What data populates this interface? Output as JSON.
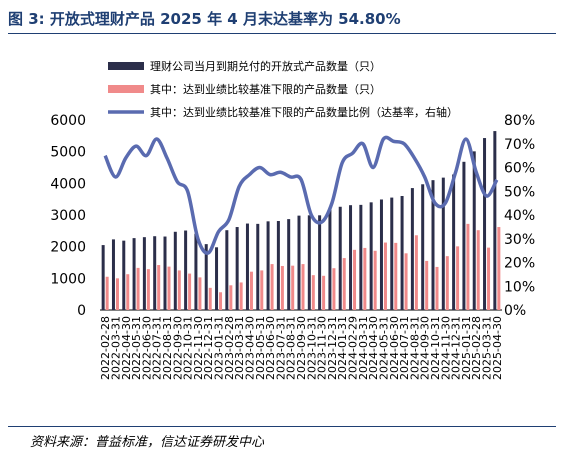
{
  "title": "图 3:  开放式理财产品 2025 年 4 月末达基率为 54.80%",
  "source": "资料来源：普益标准，信达证券研发中心",
  "colors": {
    "bar_total": "#2b2e4a",
    "bar_met": "#f08a8a",
    "line": "#5a6bb0"
  },
  "chart_data": {
    "type": "bar",
    "categories": [
      "2022-02-28",
      "2022-03-31",
      "2022-04-30",
      "2022-05-31",
      "2022-06-30",
      "2022-07-31",
      "2022-08-31",
      "2022-09-30",
      "2022-10-31",
      "2022-11-30",
      "2022-12-31",
      "2023-01-31",
      "2023-02-28",
      "2023-03-31",
      "2023-04-30",
      "2023-05-31",
      "2023-06-30",
      "2023-07-31",
      "2023-08-31",
      "2023-09-30",
      "2023-10-31",
      "2023-11-30",
      "2023-12-31",
      "2024-01-31",
      "2024-02-29",
      "2024-03-31",
      "2024-04-30",
      "2024-05-31",
      "2024-06-30",
      "2024-07-31",
      "2024-08-31",
      "2024-09-30",
      "2024-10-31",
      "2024-11-30",
      "2024-12-31",
      "2025-01-31",
      "2025-02-28",
      "2025-03-31",
      "2025-04-30"
    ],
    "x_tick_labels": [
      "2022-02-28",
      "2022-03-31",
      "2022-04-30",
      "2022-05-31",
      "2022-06-30",
      "2022-07-31",
      "2022-08-31",
      "2022-09-30",
      "2022-10-31",
      "2022-11-30",
      "2022-12-31",
      "2023-01-31",
      "2023-02-28",
      "2023-03-31",
      "2023-04-30",
      "2023-05-31",
      "2023-06-30",
      "2023-07-31",
      "2023-08-31",
      "2023-09-30",
      "2023-10-31",
      "2023-11-30",
      "2023-12-31",
      "2024-01-31",
      "2024-02-29",
      "2024-03-31",
      "2024-04-30",
      "2024-05-31",
      "2024-06-30",
      "2024-07-31",
      "2024-08-31",
      "2024-09-30",
      "2024-10-31",
      "2024-11-30",
      "2024-12-31",
      "2025-01-31",
      "2025-02-28",
      "2025-03-31",
      "2025-04-30"
    ],
    "series": [
      {
        "name": "理财公司当月到期兑付的开放式产品数量（只）",
        "kind": "bar",
        "axis": "left",
        "values": [
          2050,
          2230,
          2190,
          2270,
          2300,
          2330,
          2320,
          2470,
          2510,
          2410,
          2080,
          1980,
          2520,
          2620,
          2730,
          2720,
          2800,
          2810,
          2870,
          2980,
          2990,
          2990,
          3190,
          3260,
          3310,
          3320,
          3400,
          3490,
          3550,
          3600,
          3850,
          3970,
          4100,
          4180,
          4280,
          4680,
          5010,
          5430,
          5650
        ]
      },
      {
        "name": "其中：达到业绩比较基准下限的产品数量（只）",
        "kind": "bar",
        "axis": "left",
        "values": [
          1050,
          1000,
          1130,
          1330,
          1290,
          1420,
          1370,
          1250,
          1150,
          1030,
          700,
          560,
          780,
          870,
          1210,
          1250,
          1450,
          1390,
          1400,
          1450,
          1100,
          1080,
          1320,
          1640,
          1900,
          1960,
          1870,
          2130,
          2120,
          1790,
          2360,
          1550,
          1360,
          1700,
          2010,
          2720,
          2520,
          1970,
          2620
        ]
      },
      {
        "name": "其中：达到业绩比较基准下限的产品数量比例（达基率，右轴）",
        "kind": "line",
        "axis": "right",
        "values": [
          0.65,
          0.56,
          0.64,
          0.69,
          0.65,
          0.72,
          0.64,
          0.54,
          0.5,
          0.3,
          0.24,
          0.33,
          0.38,
          0.52,
          0.57,
          0.6,
          0.57,
          0.58,
          0.56,
          0.55,
          0.4,
          0.37,
          0.45,
          0.62,
          0.66,
          0.7,
          0.6,
          0.72,
          0.71,
          0.7,
          0.64,
          0.56,
          0.45,
          0.45,
          0.58,
          0.72,
          0.58,
          0.48,
          0.548
        ]
      }
    ],
    "ylim_left": [
      0,
      6000
    ],
    "yticks_left": [
      "0",
      "1000",
      "2000",
      "3000",
      "4000",
      "5000",
      "6000"
    ],
    "ylim_right": [
      0,
      0.8
    ],
    "yticks_right": [
      "0%",
      "10%",
      "20%",
      "30%",
      "40%",
      "50%",
      "60%",
      "70%",
      "80%"
    ],
    "grid": false,
    "legend_position": "top"
  }
}
